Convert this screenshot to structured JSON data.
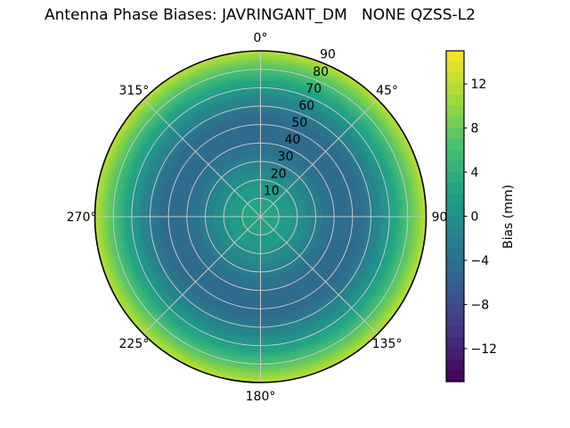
{
  "title": "Antenna Phase Biases: JAVRINGANT_DM   NONE QZSS-L2",
  "chart_data": {
    "type": "heatmap",
    "projection": "polar",
    "title": "Antenna Phase Biases: JAVRINGANT_DM   NONE QZSS-L2",
    "theta_ticks": [
      {
        "angle_deg": 0,
        "label": "0°"
      },
      {
        "angle_deg": 45,
        "label": "45°"
      },
      {
        "angle_deg": 90,
        "label": "90"
      },
      {
        "angle_deg": 135,
        "label": "135°"
      },
      {
        "angle_deg": 180,
        "label": "180°"
      },
      {
        "angle_deg": 225,
        "label": "225°"
      },
      {
        "angle_deg": 270,
        "label": "270°"
      },
      {
        "angle_deg": 315,
        "label": "315°"
      }
    ],
    "r_ticks": [
      10,
      20,
      30,
      40,
      50,
      60,
      70,
      80,
      90
    ],
    "r_max": 90,
    "r_label_angle_deg": 22.5,
    "radial_profile": {
      "r": [
        0,
        8,
        16,
        24,
        32,
        40,
        47,
        54,
        60,
        66,
        72,
        78,
        83,
        87,
        90
      ],
      "bias_mm": [
        2.5,
        2.2,
        1.2,
        -0.8,
        -2.8,
        -4.3,
        -5,
        -4.3,
        -2.6,
        -0.4,
        2.2,
        5.5,
        8.2,
        10.5,
        12
      ]
    },
    "colorbar": {
      "label": "Bias (mm)",
      "ticks": [
        12,
        8,
        4,
        0,
        -4,
        -8,
        -12
      ],
      "vmin": -15,
      "vmax": 15,
      "level_step_mm": 1,
      "colormap": "viridis",
      "stops": [
        "#440154",
        "#46327e",
        "#365c8d",
        "#277f8e",
        "#1fa187",
        "#4ac16d",
        "#a0da39",
        "#fde725"
      ]
    },
    "grid": {
      "line_color": "#c6c6c6",
      "outline_color": "#000000"
    },
    "legend_position": "right-colorbar"
  }
}
